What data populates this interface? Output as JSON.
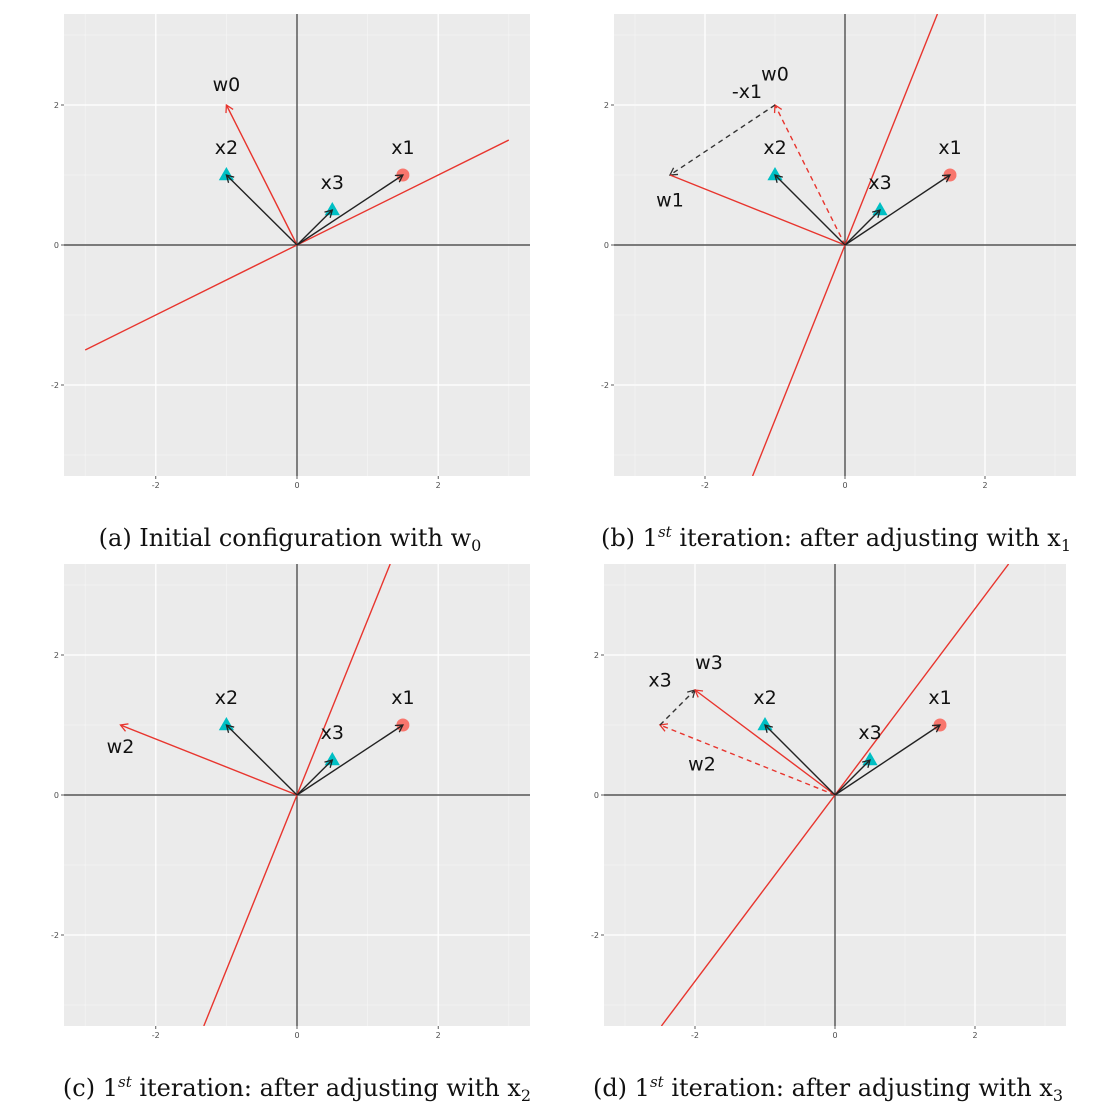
{
  "chart_data": [
    {
      "type": "scatter",
      "caption": "(a) Initial configuration with w",
      "caption_math_sub": "0",
      "xlim": [
        -3.3,
        3.3
      ],
      "ylim": [
        -3.3,
        3.3
      ],
      "x_ticks": [
        -2,
        0,
        2
      ],
      "y_ticks": [
        -2,
        0,
        2
      ],
      "grid": true,
      "points": [
        {
          "name": "x1",
          "x": 1.5,
          "y": 1.0,
          "shape": "circle",
          "color": "#f8766d"
        },
        {
          "name": "x2",
          "x": -1.0,
          "y": 1.0,
          "shape": "triangle",
          "color": "#00bfc4"
        },
        {
          "name": "x3",
          "x": 0.5,
          "y": 0.5,
          "shape": "triangle",
          "color": "#00bfc4"
        }
      ],
      "vectors": [
        {
          "name": "w0",
          "from": [
            0,
            0
          ],
          "to": [
            -1.0,
            2.0
          ],
          "color": "#e8352e",
          "dashed": false
        },
        {
          "name": "x1",
          "from": [
            0,
            0
          ],
          "to": [
            1.5,
            1.0
          ],
          "color": "#222222",
          "dashed": false
        },
        {
          "name": "x2",
          "from": [
            0,
            0
          ],
          "to": [
            -1.0,
            1.0
          ],
          "color": "#222222",
          "dashed": false
        },
        {
          "name": "x3",
          "from": [
            0,
            0
          ],
          "to": [
            0.5,
            0.5
          ],
          "color": "#222222",
          "dashed": false
        }
      ],
      "boundary": {
        "from": [
          -3.0,
          -1.5
        ],
        "to": [
          3.0,
          1.5
        ],
        "color": "#e8352e"
      },
      "labels": [
        {
          "text": "w0",
          "x": -1.0,
          "y": 2.2
        },
        {
          "text": "x1",
          "x": 1.5,
          "y": 1.3
        },
        {
          "text": "x2",
          "x": -1.0,
          "y": 1.3
        },
        {
          "text": "x3",
          "x": 0.5,
          "y": 0.8
        }
      ]
    },
    {
      "type": "scatter",
      "caption": "(b) 1",
      "caption_sup": "st",
      "caption_rest": " iteration: after adjusting with x",
      "caption_math_sub": "1",
      "xlim": [
        -3.3,
        3.3
      ],
      "ylim": [
        -3.3,
        3.3
      ],
      "x_ticks": [
        -2,
        0,
        2
      ],
      "y_ticks": [
        -2,
        0,
        2
      ],
      "grid": true,
      "points": [
        {
          "name": "x1",
          "x": 1.5,
          "y": 1.0,
          "shape": "circle",
          "color": "#f8766d"
        },
        {
          "name": "x2",
          "x": -1.0,
          "y": 1.0,
          "shape": "triangle",
          "color": "#00bfc4"
        },
        {
          "name": "x3",
          "x": 0.5,
          "y": 0.5,
          "shape": "triangle",
          "color": "#00bfc4"
        }
      ],
      "vectors": [
        {
          "name": "w0",
          "from": [
            0,
            0
          ],
          "to": [
            -1.0,
            2.0
          ],
          "color": "#e8352e",
          "dashed": true
        },
        {
          "name": "-x1",
          "from": [
            -1.0,
            2.0
          ],
          "to": [
            -2.5,
            1.0
          ],
          "color": "#333333",
          "dashed": true
        },
        {
          "name": "w1",
          "from": [
            0,
            0
          ],
          "to": [
            -2.5,
            1.0
          ],
          "color": "#e8352e",
          "dashed": false,
          "arrow": false
        },
        {
          "name": "x1",
          "from": [
            0,
            0
          ],
          "to": [
            1.5,
            1.0
          ],
          "color": "#222222",
          "dashed": false
        },
        {
          "name": "x2",
          "from": [
            0,
            0
          ],
          "to": [
            -1.0,
            1.0
          ],
          "color": "#222222",
          "dashed": false
        },
        {
          "name": "x3",
          "from": [
            0,
            0
          ],
          "to": [
            0.5,
            0.5
          ],
          "color": "#222222",
          "dashed": false
        }
      ],
      "boundary": {
        "from": [
          -1.32,
          -3.3
        ],
        "to": [
          1.32,
          3.3
        ],
        "color": "#e8352e"
      },
      "labels": [
        {
          "text": "w0",
          "x": -1.0,
          "y": 2.35
        },
        {
          "text": "-x1",
          "x": -1.4,
          "y": 2.1
        },
        {
          "text": "w1",
          "x": -2.5,
          "y": 0.55
        },
        {
          "text": "x1",
          "x": 1.5,
          "y": 1.3
        },
        {
          "text": "x2",
          "x": -1.0,
          "y": 1.3
        },
        {
          "text": "x3",
          "x": 0.5,
          "y": 0.8
        }
      ]
    },
    {
      "type": "scatter",
      "caption": "(c) 1",
      "caption_sup": "st",
      "caption_rest": " iteration: after adjusting with x",
      "caption_math_sub": "2",
      "xlim": [
        -3.3,
        3.3
      ],
      "ylim": [
        -3.3,
        3.3
      ],
      "x_ticks": [
        -2,
        0,
        2
      ],
      "y_ticks": [
        -2,
        0,
        2
      ],
      "grid": true,
      "points": [
        {
          "name": "x1",
          "x": 1.5,
          "y": 1.0,
          "shape": "circle",
          "color": "#f8766d"
        },
        {
          "name": "x2",
          "x": -1.0,
          "y": 1.0,
          "shape": "triangle",
          "color": "#00bfc4"
        },
        {
          "name": "x3",
          "x": 0.5,
          "y": 0.5,
          "shape": "triangle",
          "color": "#00bfc4"
        }
      ],
      "vectors": [
        {
          "name": "w2",
          "from": [
            0,
            0
          ],
          "to": [
            -2.5,
            1.0
          ],
          "color": "#e8352e",
          "dashed": false
        },
        {
          "name": "x1",
          "from": [
            0,
            0
          ],
          "to": [
            1.5,
            1.0
          ],
          "color": "#222222",
          "dashed": false
        },
        {
          "name": "x2",
          "from": [
            0,
            0
          ],
          "to": [
            -1.0,
            1.0
          ],
          "color": "#222222",
          "dashed": false
        },
        {
          "name": "x3",
          "from": [
            0,
            0
          ],
          "to": [
            0.5,
            0.5
          ],
          "color": "#222222",
          "dashed": false
        }
      ],
      "boundary": {
        "from": [
          -1.32,
          -3.3
        ],
        "to": [
          1.32,
          3.3
        ],
        "color": "#e8352e"
      },
      "labels": [
        {
          "text": "w2",
          "x": -2.5,
          "y": 0.6
        },
        {
          "text": "x1",
          "x": 1.5,
          "y": 1.3
        },
        {
          "text": "x2",
          "x": -1.0,
          "y": 1.3
        },
        {
          "text": "x3",
          "x": 0.5,
          "y": 0.8
        }
      ]
    },
    {
      "type": "scatter",
      "caption": "(d) 1",
      "caption_sup": "st",
      "caption_rest": " iteration: after adjusting with x",
      "caption_math_sub": "3",
      "xlim": [
        -3.3,
        3.3
      ],
      "ylim": [
        -3.3,
        3.3
      ],
      "x_ticks": [
        -2,
        0,
        2
      ],
      "y_ticks": [
        -2,
        0,
        2
      ],
      "grid": true,
      "points": [
        {
          "name": "x1",
          "x": 1.5,
          "y": 1.0,
          "shape": "circle",
          "color": "#f8766d"
        },
        {
          "name": "x2",
          "x": -1.0,
          "y": 1.0,
          "shape": "triangle",
          "color": "#00bfc4"
        },
        {
          "name": "x3",
          "x": 0.5,
          "y": 0.5,
          "shape": "triangle",
          "color": "#00bfc4"
        }
      ],
      "vectors": [
        {
          "name": "w2",
          "from": [
            0,
            0
          ],
          "to": [
            -2.5,
            1.0
          ],
          "color": "#e8352e",
          "dashed": true
        },
        {
          "name": "x3",
          "from": [
            -2.5,
            1.0
          ],
          "to": [
            -2.0,
            1.5
          ],
          "color": "#333333",
          "dashed": true
        },
        {
          "name": "w3",
          "from": [
            0,
            0
          ],
          "to": [
            -2.0,
            1.5
          ],
          "color": "#e8352e",
          "dashed": false
        },
        {
          "name": "x1",
          "from": [
            0,
            0
          ],
          "to": [
            1.5,
            1.0
          ],
          "color": "#222222",
          "dashed": false
        },
        {
          "name": "x2",
          "from": [
            0,
            0
          ],
          "to": [
            -1.0,
            1.0
          ],
          "color": "#222222",
          "dashed": false
        },
        {
          "name": "x3",
          "from": [
            0,
            0
          ],
          "to": [
            0.5,
            0.5
          ],
          "color": "#222222",
          "dashed": false
        }
      ],
      "boundary": {
        "from": [
          -2.48,
          -3.3
        ],
        "to": [
          2.48,
          3.3
        ],
        "color": "#e8352e"
      },
      "labels": [
        {
          "text": "w3",
          "x": -1.8,
          "y": 1.8
        },
        {
          "text": "x3",
          "x": -2.5,
          "y": 1.55
        },
        {
          "text": "w2",
          "x": -1.9,
          "y": 0.35
        },
        {
          "text": "x1",
          "x": 1.5,
          "y": 1.3
        },
        {
          "text": "x2",
          "x": -1.0,
          "y": 1.3
        },
        {
          "text": "x3",
          "x": 0.5,
          "y": 0.8
        }
      ]
    }
  ]
}
